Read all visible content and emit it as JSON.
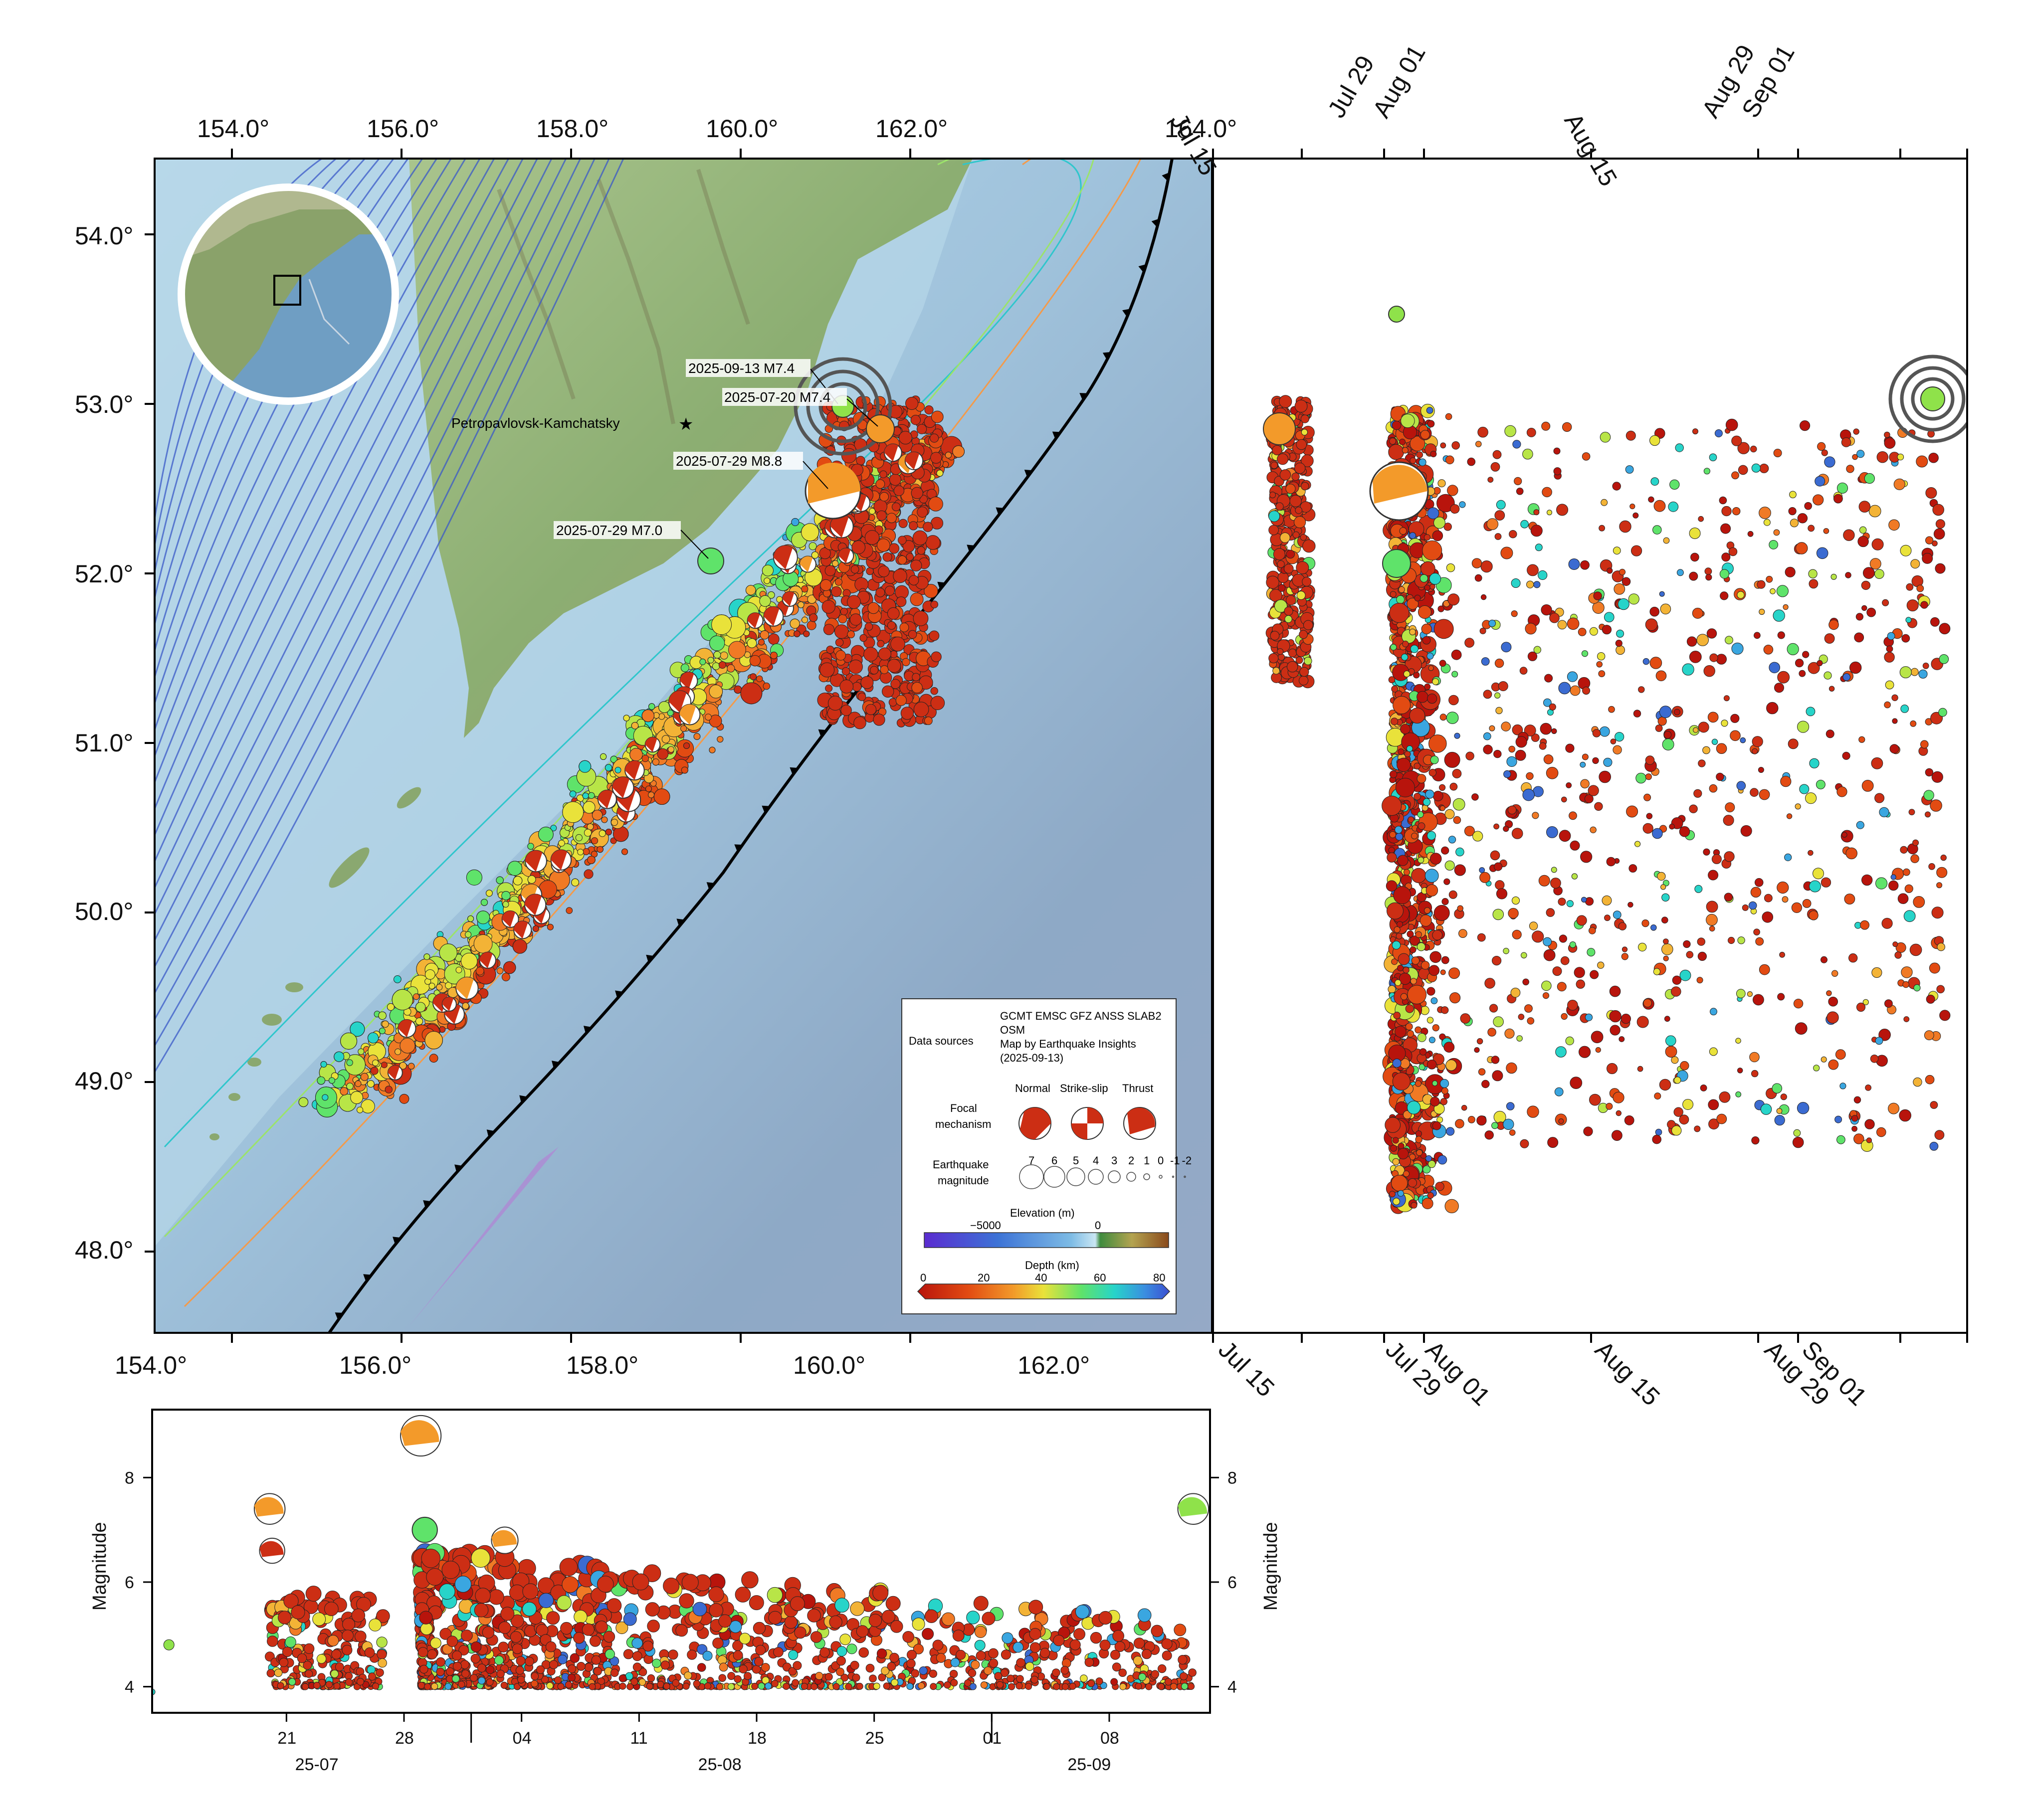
{
  "map": {
    "lon_ticks_top": [
      "154.0°",
      "156.0°",
      "158.0°",
      "160.0°",
      "162.0°",
      "164.0°"
    ],
    "lon_ticks_bottom": [
      "154.0°",
      "156.0°",
      "158.0°",
      "160.0°",
      "162.0°"
    ],
    "lat_ticks": [
      "54.0°",
      "53.0°",
      "52.0°",
      "51.0°",
      "50.0°",
      "49.0°",
      "48.0°"
    ],
    "lon_range": [
      153.0,
      164.0
    ],
    "lat_range": [
      47.5,
      54.45
    ],
    "city": "Petropavlovsk-Kamchatsky",
    "event_labels": [
      {
        "text": "2025-09-13 M7.4",
        "lon": 160.1,
        "lat": 53.0
      },
      {
        "text": "2025-07-20 M7.4",
        "lon": 160.4,
        "lat": 52.85
      },
      {
        "text": "2025-07-29 M8.8",
        "lon": 159.9,
        "lat": 52.45
      },
      {
        "text": "2025-07-29 M7.0",
        "lon": 158.9,
        "lat": 52.05
      }
    ],
    "colors": {
      "land": "#8fb07a",
      "sea_shallow": "#a7cde3",
      "sea_deep": "#8aa8c4",
      "trench": "#000000",
      "contours": "#3a59c8",
      "slab_zone": "#b57bd6"
    }
  },
  "legend": {
    "data_sources_title": "Data sources",
    "data_sources_lines": [
      "GCMT EMSC GFZ ANSS SLAB2",
      "OSM",
      "Map by Earthquake Insights",
      "(2025-09-13)"
    ],
    "focal_title_1": "Focal",
    "focal_title_2": "mechanism",
    "focal_types": [
      "Normal",
      "Strike-slip",
      "Thrust"
    ],
    "mag_title_1": "Earthquake",
    "mag_title_2": "magnitude",
    "mag_values": [
      "7",
      "6",
      "5",
      "4",
      "3",
      "2",
      "1",
      "0",
      "-1",
      "-2"
    ],
    "elev_title": "Elevation (m)",
    "elev_ticks": [
      "−5000",
      "0"
    ],
    "depth_title": "Depth (km)",
    "depth_ticks": [
      "0",
      "20",
      "40",
      "60",
      "80"
    ]
  },
  "time_panel": {
    "ticks": [
      "Jul 15",
      "Jul 29",
      "Aug 01",
      "Aug 15",
      "Aug 29",
      "Sep 01"
    ]
  },
  "mag_panel": {
    "ylabel": "Magnitude",
    "yticks": [
      "4",
      "6",
      "8"
    ],
    "day_ticks": [
      "21",
      "28",
      "04",
      "11",
      "18",
      "25",
      "01",
      "08"
    ],
    "month_ticks": [
      "25-07",
      "25-08",
      "25-09"
    ]
  },
  "chart_data": {
    "type": "scatter",
    "title": "",
    "xlabel": "",
    "ylabel": "Magnitude",
    "ylim": [
      3.5,
      9.3
    ],
    "x_range": [
      "2025-07-13",
      "2025-09-14"
    ],
    "mainshocks": [
      {
        "date": "2025-07-20",
        "magnitude": 7.4
      },
      {
        "date": "2025-07-20",
        "magnitude": 6.6
      },
      {
        "date": "2025-07-29",
        "magnitude": 8.8
      },
      {
        "date": "2025-07-29",
        "magnitude": 7.0
      },
      {
        "date": "2025-08-03",
        "magnitude": 6.8
      },
      {
        "date": "2025-09-13",
        "magnitude": 7.4
      }
    ],
    "depth_color_scale_km": [
      0,
      80
    ]
  }
}
